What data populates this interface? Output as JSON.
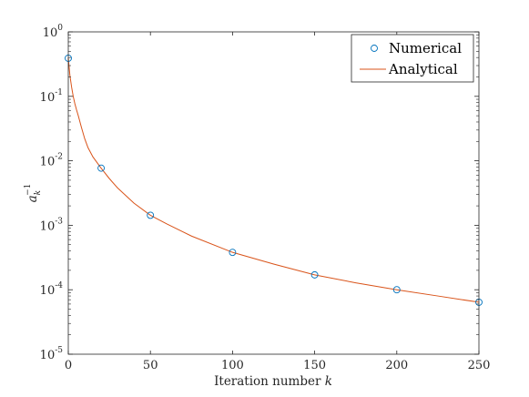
{
  "chart_data": {
    "type": "line",
    "xlabel": "Iteration number",
    "xlabel_var": "k",
    "ylabel": "a",
    "ylabel_sub": "k",
    "ylabel_sup": "−1",
    "yscale": "log",
    "xlim": [
      0,
      250
    ],
    "ylim": [
      1e-05,
      1
    ],
    "x_ticks": [
      "0",
      "50",
      "100",
      "150",
      "200",
      "250"
    ],
    "y_ticks": [
      {
        "base": "10",
        "exp": "-5"
      },
      {
        "base": "10",
        "exp": "-4"
      },
      {
        "base": "10",
        "exp": "-3"
      },
      {
        "base": "10",
        "exp": "-2"
      },
      {
        "base": "10",
        "exp": "-1"
      },
      {
        "base": "10",
        "exp": "0"
      }
    ],
    "legend_position": "top-right",
    "grid": false,
    "series": [
      {
        "name": "Numerical",
        "kind": "markers",
        "marker": "circle",
        "color": "#0072BD",
        "x": [
          0,
          20,
          50,
          100,
          150,
          200,
          250
        ],
        "y": [
          0.39,
          0.0077,
          0.00143,
          0.00038,
          0.00017,
          0.0001,
          6.4e-05
        ]
      },
      {
        "name": "Analytical",
        "kind": "line",
        "color": "#D95319",
        "x": [
          0,
          1,
          2,
          3,
          4,
          5,
          6,
          8,
          10,
          12,
          15,
          20,
          25,
          30,
          40,
          50,
          60,
          75,
          100,
          125,
          150,
          175,
          200,
          225,
          250
        ],
        "y": [
          0.39,
          0.21,
          0.14,
          0.1,
          0.077,
          0.062,
          0.051,
          0.033,
          0.022,
          0.016,
          0.0115,
          0.0077,
          0.0053,
          0.0038,
          0.0022,
          0.00143,
          0.00105,
          0.00068,
          0.00038,
          0.00025,
          0.00017,
          0.000128,
          0.0001,
          8e-05,
          6.4e-05
        ]
      }
    ]
  }
}
